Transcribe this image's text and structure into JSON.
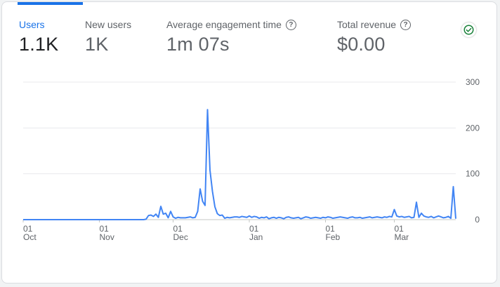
{
  "metrics": [
    {
      "label": "Users",
      "value": "1.1K",
      "active": true,
      "help": false
    },
    {
      "label": "New users",
      "value": "1K",
      "active": false,
      "help": false
    },
    {
      "label": "Average engagement time",
      "value": "1m 07s",
      "active": false,
      "help": true
    },
    {
      "label": "Total revenue",
      "value": "$0.00",
      "active": false,
      "help": true
    }
  ],
  "status_icon": "check-circle-icon",
  "colors": {
    "accent": "#1a73e8",
    "line": "#4285f4",
    "success": "#188038"
  },
  "chart_data": {
    "type": "line",
    "title": "",
    "series_name": "Users",
    "x_labels": [
      {
        "day": "01",
        "month": "Oct",
        "index": 0
      },
      {
        "day": "01",
        "month": "Nov",
        "index": 31
      },
      {
        "day": "01",
        "month": "Dec",
        "index": 61
      },
      {
        "day": "01",
        "month": "Jan",
        "index": 92
      },
      {
        "day": "01",
        "month": "Feb",
        "index": 123
      },
      {
        "day": "01",
        "month": "Mar",
        "index": 151
      }
    ],
    "y_ticks": [
      0,
      100,
      200,
      300
    ],
    "ylim": [
      0,
      300
    ],
    "values": [
      0,
      0,
      0,
      0,
      0,
      0,
      0,
      0,
      0,
      0,
      0,
      0,
      0,
      0,
      0,
      0,
      0,
      0,
      0,
      0,
      0,
      0,
      0,
      0,
      0,
      0,
      0,
      0,
      0,
      0,
      0,
      0,
      0,
      0,
      0,
      0,
      0,
      0,
      0,
      0,
      0,
      0,
      0,
      0,
      0,
      0,
      0,
      0,
      0,
      0,
      1,
      9,
      10,
      7,
      12,
      5,
      29,
      12,
      14,
      4,
      18,
      6,
      3,
      5,
      4,
      4,
      4,
      5,
      6,
      4,
      5,
      18,
      67,
      40,
      31,
      240,
      108,
      62,
      28,
      13,
      9,
      10,
      3,
      5,
      4,
      5,
      6,
      6,
      5,
      7,
      6,
      5,
      8,
      5,
      7,
      6,
      3,
      5,
      4,
      6,
      2,
      4,
      5,
      3,
      5,
      4,
      2,
      5,
      6,
      4,
      3,
      4,
      5,
      2,
      4,
      6,
      5,
      3,
      4,
      5,
      4,
      3,
      5,
      4,
      6,
      5,
      3,
      4,
      5,
      6,
      5,
      4,
      3,
      5,
      6,
      4,
      4,
      5,
      3,
      4,
      5,
      6,
      4,
      5,
      6,
      5,
      4,
      6,
      5,
      7,
      6,
      22,
      8,
      6,
      7,
      5,
      6,
      7,
      4,
      5,
      38,
      5,
      14,
      8,
      6,
      5,
      7,
      4,
      6,
      8,
      6,
      4,
      5,
      7,
      3,
      72,
      2
    ]
  }
}
